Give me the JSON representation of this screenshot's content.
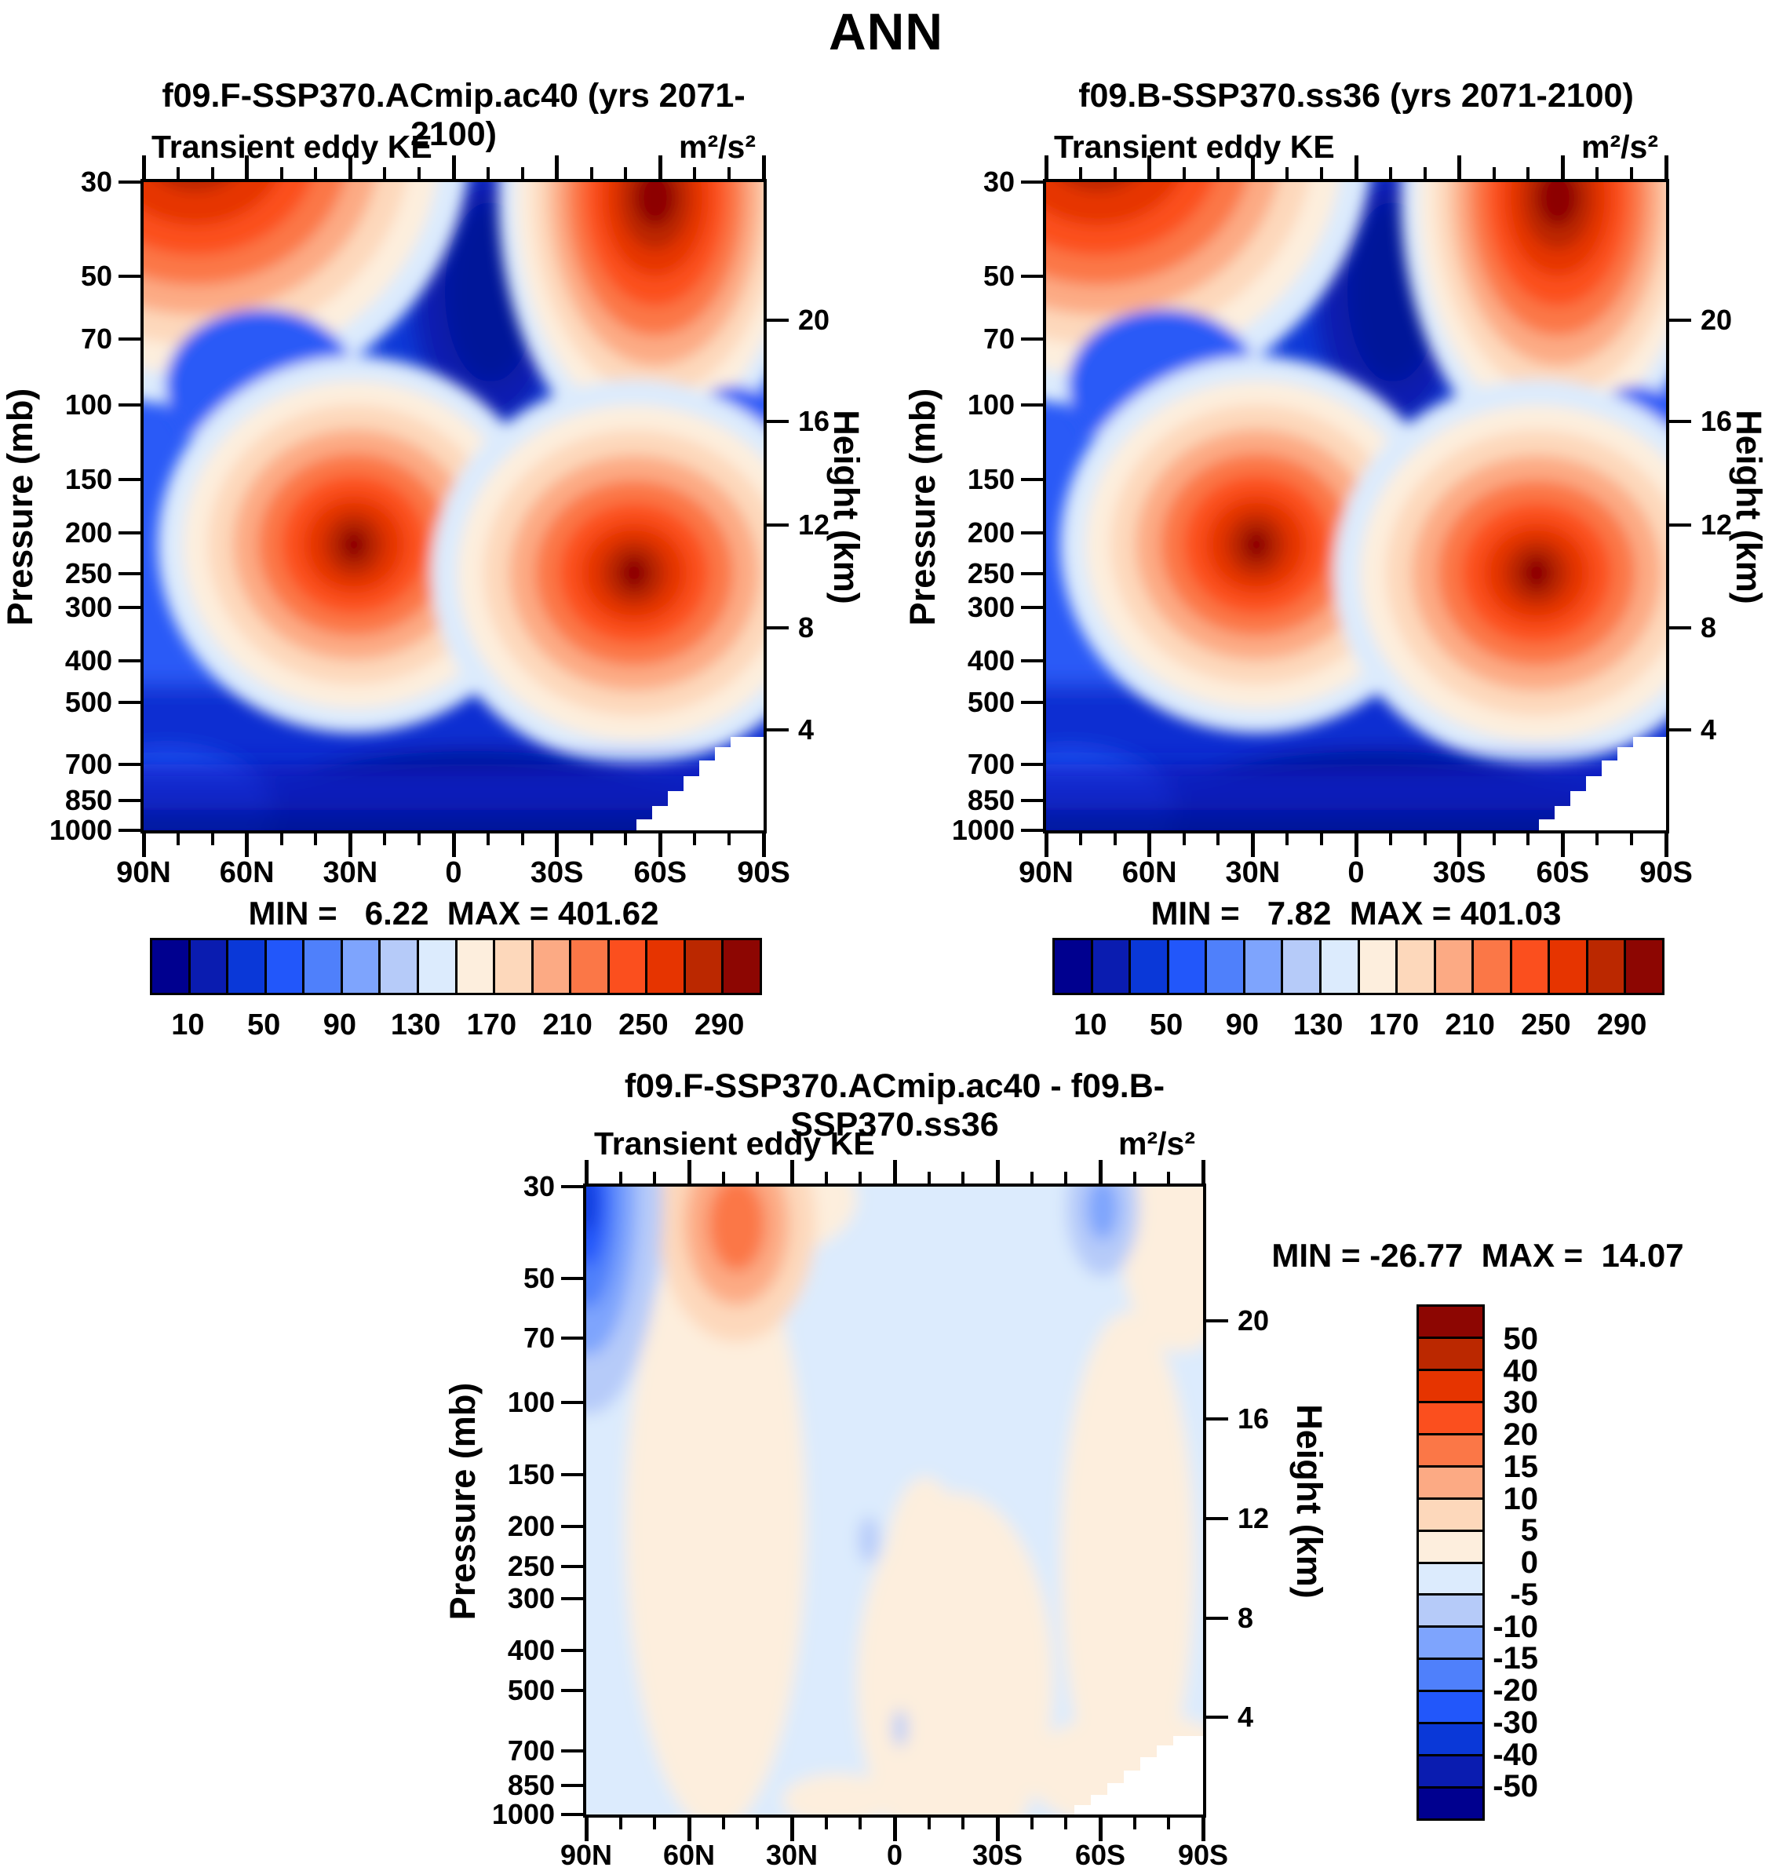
{
  "title": "ANN",
  "panels": {
    "left": {
      "title": "f09.F-SSP370.ACmip.ac40 (yrs 2071-2100)",
      "field_label": "Transient eddy KE",
      "units": "m²/s²",
      "minmax": "MIN =   6.22  MAX = 401.62"
    },
    "right": {
      "title": "f09.B-SSP370.ss36 (yrs 2071-2100)",
      "field_label": "Transient eddy KE",
      "units": "m²/s²",
      "minmax": "MIN =   7.82  MAX = 401.03"
    },
    "diff": {
      "title": "f09.F-SSP370.ACmip.ac40 - f09.B-SSP370.ss36",
      "field_label": "Transient eddy KE",
      "units": "m²/s²",
      "minmax": "MIN = -26.77  MAX =  14.07"
    }
  },
  "axes": {
    "pressure": {
      "label": "Pressure (mb)",
      "ticks": [
        "30",
        "50",
        "70",
        "100",
        "150",
        "200",
        "250",
        "300",
        "400",
        "500",
        "700",
        "850",
        "1000"
      ]
    },
    "height": {
      "label": "Height (km)",
      "ticks": [
        "20",
        "16",
        "12",
        "8",
        "4"
      ]
    },
    "latitude": {
      "ticks": [
        "90N",
        "60N",
        "30N",
        "0",
        "30S",
        "60S",
        "90S"
      ]
    }
  },
  "colorbars": {
    "top": {
      "labels": [
        "10",
        "50",
        "90",
        "130",
        "170",
        "210",
        "250",
        "290"
      ],
      "levels": [
        10,
        30,
        50,
        70,
        90,
        110,
        130,
        150,
        170,
        190,
        210,
        230,
        250,
        270,
        290
      ],
      "colors": [
        "#00008f",
        "#0a1cb0",
        "#0a38d8",
        "#2257fa",
        "#4f80fb",
        "#7ea4fd",
        "#b6cbf9",
        "#dcebfd",
        "#fdeedd",
        "#fdd8bb",
        "#fcaa84",
        "#fb7747",
        "#fb4f1e",
        "#e63400",
        "#bb2800",
        "#8d0602"
      ]
    },
    "diff": {
      "labels": [
        "50",
        "40",
        "30",
        "20",
        "15",
        "10",
        "5",
        "0",
        "-5",
        "-10",
        "-15",
        "-20",
        "-30",
        "-40",
        "-50"
      ],
      "levels": [
        -50,
        -40,
        -30,
        -20,
        -15,
        -10,
        -5,
        0,
        5,
        10,
        15,
        20,
        30,
        40,
        50
      ],
      "colors": [
        "#8d0602",
        "#bb2800",
        "#e63400",
        "#fb4f1e",
        "#fb7747",
        "#fcaa84",
        "#fdd8bb",
        "#fdeedd",
        "#dcebfd",
        "#b6cbf9",
        "#7ea4fd",
        "#4f80fb",
        "#2257fa",
        "#0a38d8",
        "#0a1cb0",
        "#00008f"
      ]
    }
  },
  "chart_data": [
    {
      "type": "heatmap",
      "title": "f09.F-SSP370.ACmip.ac40 (yrs 2071-2100)",
      "subtitle": "Transient eddy KE",
      "units": "m²/s²",
      "xlabel": "Latitude",
      "ylabel": "Pressure (mb)",
      "y_axis_scale": "log-inverted",
      "secondary_ylabel": "Height (km)",
      "secondary_yticks": [
        20,
        16,
        12,
        8,
        4
      ],
      "x": [
        "90N",
        "75N",
        "60N",
        "45N",
        "30N",
        "15N",
        "0",
        "15S",
        "30S",
        "45S",
        "60S",
        "75S",
        "90S"
      ],
      "y_pressure_mb": [
        30,
        50,
        70,
        100,
        150,
        200,
        250,
        300,
        400,
        500,
        700,
        850,
        1000
      ],
      "values": [
        [
          280,
          330,
          230,
          110,
          40,
          15,
          10,
          40,
          150,
          330,
          401.6,
          260,
          120
        ],
        [
          170,
          200,
          140,
          80,
          30,
          10,
          8,
          25,
          90,
          230,
          340,
          200,
          90
        ],
        [
          120,
          130,
          100,
          60,
          25,
          10,
          8,
          20,
          60,
          160,
          230,
          130,
          60
        ],
        [
          80,
          95,
          95,
          75,
          45,
          20,
          12,
          30,
          80,
          160,
          160,
          90,
          45
        ],
        [
          65,
          95,
          140,
          180,
          140,
          55,
          30,
          70,
          170,
          230,
          150,
          75,
          35
        ],
        [
          65,
          115,
          200,
          300,
          250,
          95,
          50,
          100,
          250,
          280,
          190,
          85,
          30
        ],
        [
          60,
          110,
          210,
          280,
          230,
          100,
          60,
          120,
          270,
          340,
          230,
          90,
          25
        ],
        [
          55,
          95,
          175,
          235,
          180,
          85,
          50,
          95,
          220,
          300,
          215,
          80,
          20
        ],
        [
          45,
          65,
          115,
          155,
          115,
          55,
          35,
          60,
          140,
          220,
          160,
          60,
          15
        ],
        [
          35,
          50,
          85,
          115,
          85,
          40,
          25,
          45,
          95,
          160,
          115,
          45,
          12
        ],
        [
          25,
          35,
          50,
          65,
          45,
          25,
          15,
          25,
          55,
          95,
          75,
          30,
          null
        ],
        [
          18,
          25,
          35,
          40,
          30,
          15,
          10,
          15,
          35,
          65,
          55,
          null,
          null
        ],
        [
          12,
          18,
          25,
          25,
          18,
          10,
          6.2,
          10,
          25,
          45,
          35,
          null,
          null
        ]
      ],
      "min": 6.22,
      "max": 401.62,
      "contour_levels": [
        10,
        30,
        50,
        70,
        90,
        110,
        130,
        150,
        170,
        190,
        210,
        230,
        250,
        270,
        290
      ]
    },
    {
      "type": "heatmap",
      "title": "f09.B-SSP370.ss36 (yrs 2071-2100)",
      "subtitle": "Transient eddy KE",
      "units": "m²/s²",
      "xlabel": "Latitude",
      "ylabel": "Pressure (mb)",
      "y_axis_scale": "log-inverted",
      "secondary_ylabel": "Height (km)",
      "secondary_yticks": [
        20,
        16,
        12,
        8,
        4
      ],
      "x": [
        "90N",
        "75N",
        "60N",
        "45N",
        "30N",
        "15N",
        "0",
        "15S",
        "30S",
        "45S",
        "60S",
        "75S",
        "90S"
      ],
      "y_pressure_mb": [
        30,
        50,
        70,
        100,
        150,
        200,
        250,
        300,
        400,
        500,
        700,
        850,
        1000
      ],
      "values": [
        [
          307,
          325,
          216,
          107,
          42,
          17,
          12,
          42,
          153,
          334,
          401,
          258,
          116
        ],
        [
          184,
          196,
          128,
          77,
          32,
          12,
          10,
          27,
          93,
          233,
          345,
          198,
          87
        ],
        [
          127,
          126,
          92,
          58,
          27,
          12,
          10,
          22,
          62,
          162,
          233,
          128,
          57
        ],
        [
          84,
          92,
          90,
          73,
          47,
          22,
          13,
          31,
          82,
          162,
          162,
          88,
          43
        ],
        [
          67,
          92,
          136,
          179,
          142,
          56,
          29,
          71,
          172,
          228,
          152,
          73,
          33
        ],
        [
          67,
          113,
          197,
          303,
          252,
          94,
          48,
          101,
          252,
          278,
          192,
          84,
          29
        ],
        [
          62,
          108,
          207,
          282,
          232,
          99,
          58,
          121,
          268,
          337,
          232,
          89,
          24
        ],
        [
          56,
          93,
          173,
          237,
          182,
          84,
          48,
          96,
          218,
          297,
          217,
          79,
          19
        ],
        [
          46,
          63,
          113,
          157,
          117,
          54,
          33,
          59,
          138,
          222,
          162,
          59,
          14
        ],
        [
          36,
          48,
          83,
          116,
          87,
          39,
          23,
          44,
          93,
          162,
          117,
          44,
          11
        ],
        [
          26,
          34,
          48,
          66,
          47,
          23,
          13,
          24,
          53,
          97,
          73,
          29,
          null
        ],
        [
          19,
          24,
          33,
          41,
          31,
          13,
          8,
          14,
          33,
          66,
          53,
          null,
          null
        ],
        [
          13,
          17,
          24,
          26,
          19,
          8,
          7.8,
          9,
          23,
          46,
          33,
          null,
          null
        ]
      ],
      "min": 7.82,
      "max": 401.03,
      "contour_levels": [
        10,
        30,
        50,
        70,
        90,
        110,
        130,
        150,
        170,
        190,
        210,
        230,
        250,
        270,
        290
      ]
    },
    {
      "type": "heatmap",
      "title": "f09.F-SSP370.ACmip.ac40 - f09.B-SSP370.ss36",
      "subtitle": "Transient eddy KE",
      "units": "m²/s²",
      "xlabel": "Latitude",
      "ylabel": "Pressure (mb)",
      "y_axis_scale": "log-inverted",
      "secondary_ylabel": "Height (km)",
      "secondary_yticks": [
        20,
        16,
        12,
        8,
        4
      ],
      "x": [
        "90N",
        "75N",
        "60N",
        "45N",
        "30N",
        "15N",
        "0",
        "15S",
        "30S",
        "45S",
        "60S",
        "75S",
        "90S"
      ],
      "y_pressure_mb": [
        30,
        50,
        70,
        100,
        150,
        200,
        250,
        300,
        400,
        500,
        700,
        850,
        1000
      ],
      "values": [
        [
          -26.8,
          6,
          14.1,
          3,
          -2,
          -3,
          -3,
          -2,
          -3,
          -4,
          -7,
          2,
          4
        ],
        [
          -14,
          5,
          12,
          3,
          -2,
          -3,
          -2,
          -2,
          -3,
          -3,
          -5,
          2,
          3
        ],
        [
          -7,
          4,
          8,
          2,
          -2,
          -2,
          -2,
          -2,
          -2,
          -2,
          -3,
          2,
          3
        ],
        [
          -4,
          3,
          5,
          2,
          -2,
          -2,
          -1,
          -1,
          -2,
          -2,
          -2,
          2,
          2
        ],
        [
          -2,
          3,
          4,
          1,
          -2,
          -1,
          1,
          -1,
          -2,
          2,
          -2,
          2,
          2
        ],
        [
          -2,
          2,
          3,
          -3,
          -2,
          1,
          2,
          -1,
          -2,
          2,
          -2,
          1,
          1
        ],
        [
          -2,
          2,
          3,
          -2,
          -2,
          1,
          2,
          -1,
          2,
          3,
          -2,
          1,
          1
        ],
        [
          -1,
          2,
          2,
          -2,
          -2,
          1,
          2,
          -1,
          2,
          3,
          -2,
          1,
          1
        ],
        [
          -1,
          2,
          2,
          -2,
          -2,
          1,
          2,
          1,
          2,
          -2,
          -2,
          1,
          1
        ],
        [
          -1,
          2,
          2,
          -1,
          -2,
          1,
          2,
          1,
          2,
          -2,
          -2,
          1,
          1
        ],
        [
          -1,
          1,
          2,
          -1,
          -2,
          2,
          2,
          1,
          2,
          -2,
          2,
          1,
          null
        ],
        [
          -1,
          1,
          2,
          -1,
          -1,
          2,
          1,
          1,
          2,
          -1,
          2,
          null,
          null
        ],
        [
          -1,
          1,
          1,
          -1,
          -1,
          2,
          1,
          1,
          2,
          -1,
          2,
          null,
          null
        ]
      ],
      "min": -26.77,
      "max": 14.07,
      "contour_levels": [
        -50,
        -40,
        -30,
        -20,
        -15,
        -10,
        -5,
        0,
        5,
        10,
        15,
        20,
        30,
        40,
        50
      ]
    }
  ]
}
